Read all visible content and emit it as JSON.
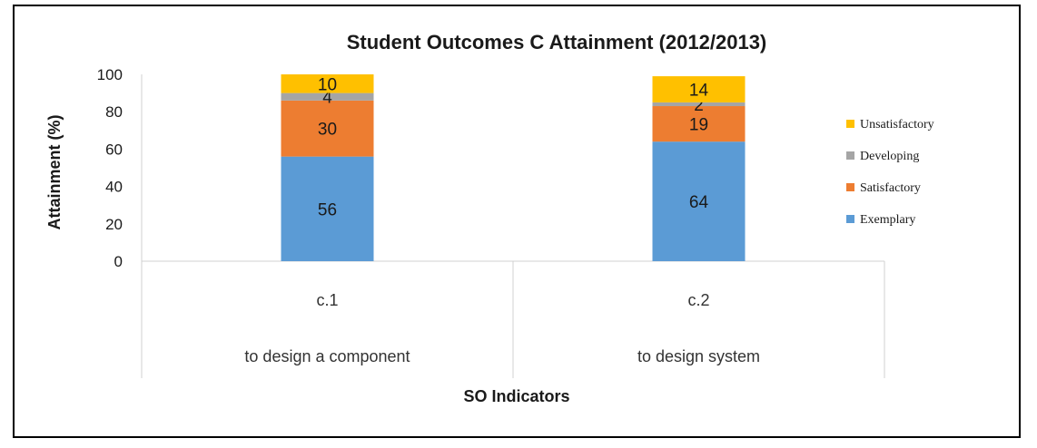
{
  "chart_data": {
    "type": "bar",
    "stacked": true,
    "title": "Student Outcomes C Attainment (2012/2013)",
    "xlabel": "SO Indicators",
    "ylabel": "Attainment (%)",
    "ylim": [
      0,
      100
    ],
    "yticks": [
      "0",
      "20",
      "40",
      "60",
      "80",
      "100"
    ],
    "categories": [
      {
        "code": "c.1",
        "label": "to design a component"
      },
      {
        "code": "c.2",
        "label": "to design system"
      }
    ],
    "series": [
      {
        "name": "Exemplary",
        "color": "#5b9bd5",
        "values": [
          56,
          64
        ]
      },
      {
        "name": "Satisfactory",
        "color": "#ed7d31",
        "values": [
          30,
          19
        ]
      },
      {
        "name": "Developing",
        "color": "#a5a5a5",
        "values": [
          4,
          2
        ]
      },
      {
        "name": "Unsatisfactory",
        "color": "#ffc000",
        "values": [
          10,
          14
        ]
      }
    ],
    "legend_position": "right",
    "legend_order": [
      "Unsatisfactory",
      "Developing",
      "Satisfactory",
      "Exemplary"
    ],
    "grid": false
  }
}
